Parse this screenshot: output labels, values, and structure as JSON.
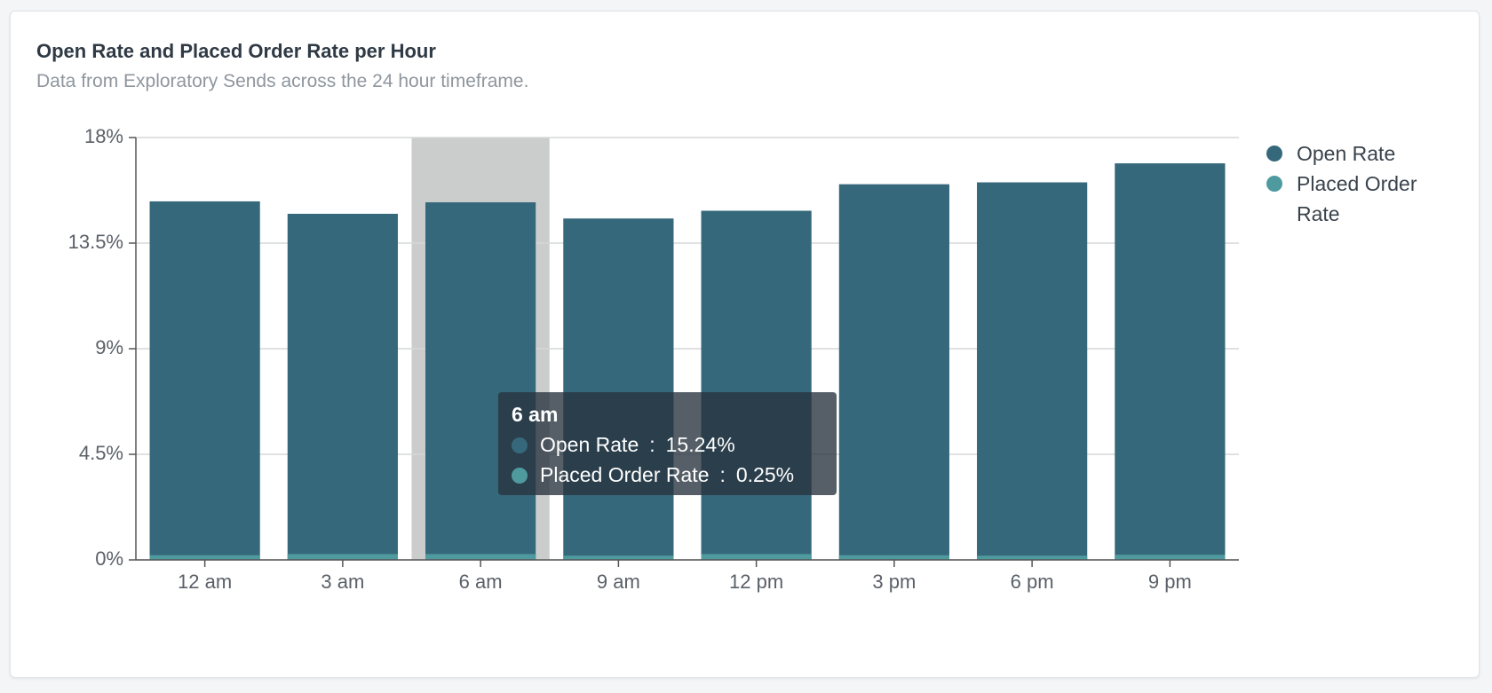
{
  "chart_data": {
    "type": "bar",
    "title": "Open Rate and Placed Order Rate per Hour",
    "subtitle": "Data from Exploratory Sends across the 24 hour timeframe.",
    "categories": [
      "12 am",
      "3 am",
      "6 am",
      "9 am",
      "12 pm",
      "3 pm",
      "6 pm",
      "9 pm"
    ],
    "series": [
      {
        "name": "Open Rate",
        "color": "#36687b",
        "values": [
          15.28,
          14.75,
          15.24,
          14.55,
          14.88,
          16.01,
          16.09,
          16.9
        ]
      },
      {
        "name": "Placed Order Rate",
        "color": "#4f9a9e",
        "values": [
          0.2,
          0.25,
          0.25,
          0.18,
          0.25,
          0.2,
          0.18,
          0.22
        ]
      }
    ],
    "ylim": [
      0,
      18
    ],
    "yticks": [
      {
        "value": 0,
        "label": "0%"
      },
      {
        "value": 4.5,
        "label": "4.5%"
      },
      {
        "value": 9,
        "label": "9%"
      },
      {
        "value": 13.5,
        "label": "13.5%"
      },
      {
        "value": 18,
        "label": "18%"
      }
    ],
    "grid": true,
    "legend": "right",
    "tooltip": {
      "category": "6 am",
      "separator": ":",
      "rows": [
        {
          "series": "Open Rate",
          "label": "15.24%"
        },
        {
          "series": "Placed Order Rate",
          "label": "0.25%"
        }
      ]
    }
  }
}
